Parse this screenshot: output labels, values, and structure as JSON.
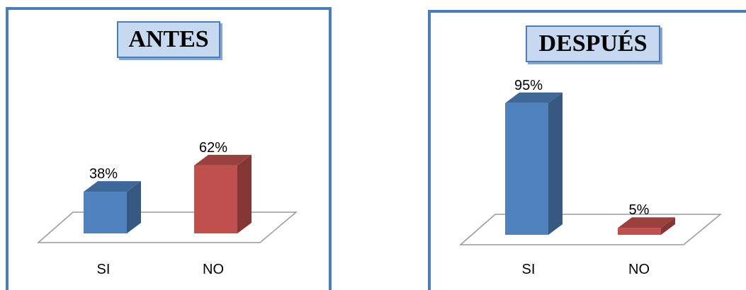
{
  "colors": {
    "series_si": "#4f81bd",
    "series_no": "#c0504d",
    "panel_border": "#4a7ebb",
    "title_fill": "#c6d9f1"
  },
  "chart_data": [
    {
      "type": "bar",
      "title": "ANTES",
      "categories": [
        "SI",
        "NO"
      ],
      "values": [
        38,
        62
      ],
      "value_labels": [
        "38%",
        "62%"
      ],
      "ylim": [
        0,
        100
      ],
      "style": "3d-column",
      "grid": false,
      "legend": false
    },
    {
      "type": "bar",
      "title": "DESPUÉS",
      "categories": [
        "SI",
        "NO"
      ],
      "values": [
        95,
        5
      ],
      "value_labels": [
        "95%",
        "5%"
      ],
      "ylim": [
        0,
        100
      ],
      "style": "3d-column",
      "grid": false,
      "legend": false
    }
  ]
}
